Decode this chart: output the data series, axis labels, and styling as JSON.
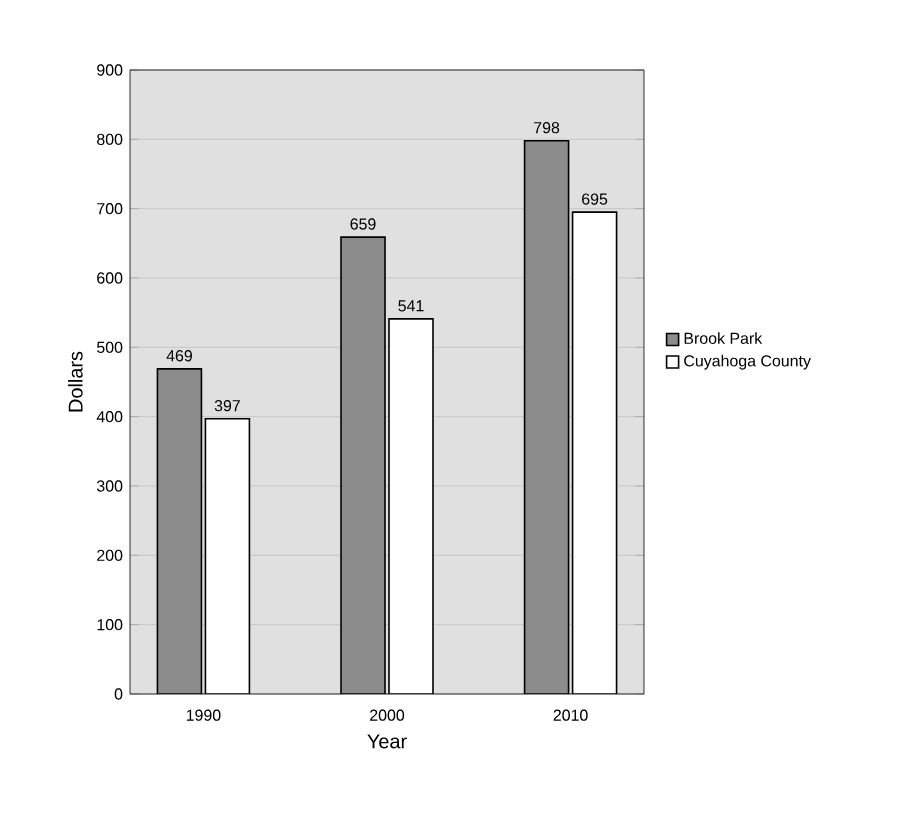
{
  "chart_data": {
    "type": "bar",
    "xlabel": "Year",
    "ylabel": "Dollars",
    "categories": [
      "1990",
      "2000",
      "2010"
    ],
    "series": [
      {
        "name": "Brook Park",
        "color": "#8c8c8c",
        "values": [
          469,
          659,
          798
        ]
      },
      {
        "name": "Cuyahoga County",
        "color": "#ffffff",
        "values": [
          397,
          541,
          695
        ]
      }
    ],
    "ylim": [
      0,
      900
    ],
    "yticks": [
      0,
      100,
      200,
      300,
      400,
      500,
      600,
      700,
      800,
      900
    ],
    "grid": "y",
    "legend": "right",
    "data_labels": true
  }
}
